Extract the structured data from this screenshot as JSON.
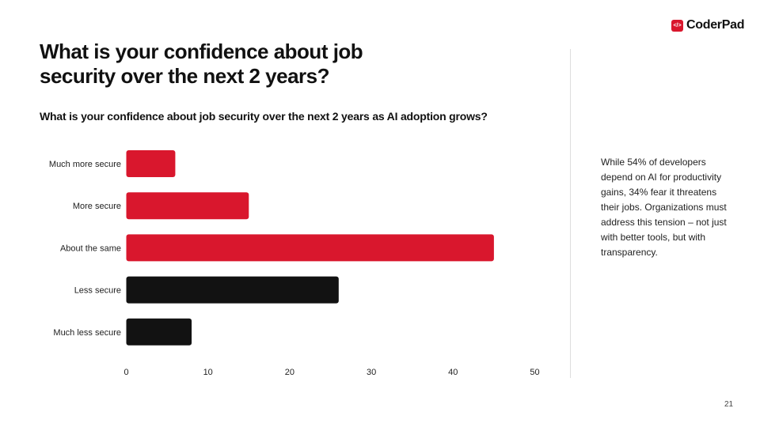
{
  "header": {
    "title": "What is your confidence about job security over the next 2 years?",
    "logo_text": "CoderPad",
    "logo_icon": "</>"
  },
  "note": "While 54% of developers depend on AI for productivity gains, 34% fear it threatens their jobs. Organizations must address this tension – not just with better tools, but with transparency.",
  "page_number": "21",
  "chart_data": {
    "type": "bar",
    "orientation": "horizontal",
    "title": "What is your confidence about job security over the next 2 years as AI adoption grows?",
    "categories": [
      "Much more secure",
      "More secure",
      "About the same",
      "Less secure",
      "Much less secure"
    ],
    "values": [
      6,
      15,
      45,
      26,
      8
    ],
    "colors": [
      "#d9172d",
      "#d9172d",
      "#d9172d",
      "#121212",
      "#121212"
    ],
    "xlim": [
      0,
      50
    ],
    "xticks": [
      "0",
      "10",
      "20",
      "30",
      "40",
      "50"
    ],
    "grid": false,
    "xlabel": "",
    "ylabel": ""
  }
}
